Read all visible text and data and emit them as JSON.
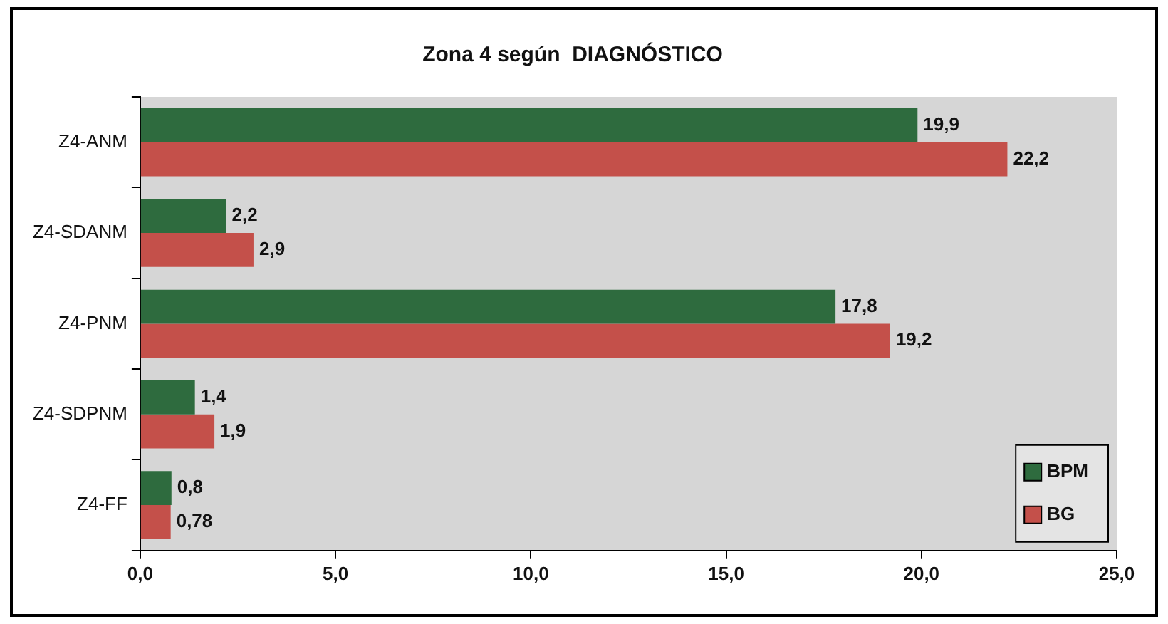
{
  "chart_data": {
    "type": "bar",
    "orientation": "horizontal",
    "title": "Zona 4 según  DIAGNÓSTICO",
    "categories": [
      "Z4-ANM",
      "Z4-SDANM",
      "Z4-PNM",
      "Z4-SDPNM",
      "Z4-FF"
    ],
    "series": [
      {
        "name": "BPM",
        "color": "#2e6b3e",
        "values": [
          19.9,
          2.2,
          17.8,
          1.4,
          0.8
        ],
        "value_labels": [
          "19,9",
          "2,2",
          "17,8",
          "1,4",
          "0,8"
        ]
      },
      {
        "name": "BG",
        "color": "#c4504a",
        "values": [
          22.2,
          2.9,
          19.2,
          1.9,
          0.78
        ],
        "value_labels": [
          "22,2",
          "2,9",
          "19,2",
          "1,9",
          "0,78"
        ]
      }
    ],
    "xlim": [
      0,
      25
    ],
    "xticks": [
      {
        "value": 0,
        "label": "0,0"
      },
      {
        "value": 5,
        "label": "5,0"
      },
      {
        "value": 10,
        "label": "10,0"
      },
      {
        "value": 15,
        "label": "15,0"
      },
      {
        "value": 20,
        "label": "20,0"
      },
      {
        "value": 25,
        "label": "25,0"
      }
    ],
    "grid": false,
    "legend": "bottom right"
  }
}
